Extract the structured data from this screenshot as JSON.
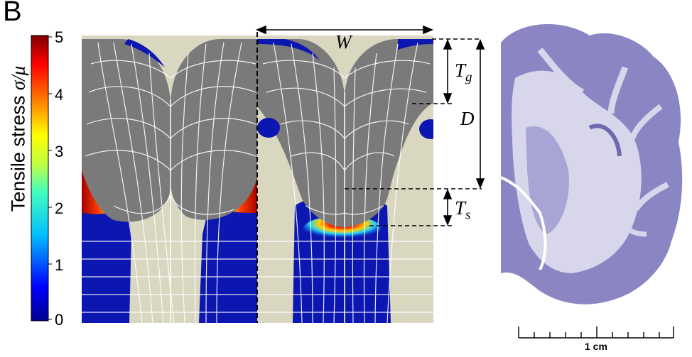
{
  "panel_label": "B",
  "colorbar": {
    "label_text": "Tensile stress ",
    "label_symbol": "σ/μ",
    "ticks": [
      "5",
      "4",
      "3",
      "2",
      "1",
      "0"
    ],
    "min": 0,
    "max": 5
  },
  "dimensions": {
    "width": "W",
    "gyral_thickness": "T",
    "gyral_sub": "g",
    "depth": "D",
    "sulcal_thickness": "T",
    "sulcal_sub": "s"
  },
  "scale_bar": {
    "label": "1 cm"
  },
  "colors": {
    "gray_matter": "#7a7a7a",
    "white_matter": "#d9d7c0",
    "stress_low": "#0c16a8",
    "stress_high": "#a80000",
    "nissl_stain": "#8a86c4"
  }
}
